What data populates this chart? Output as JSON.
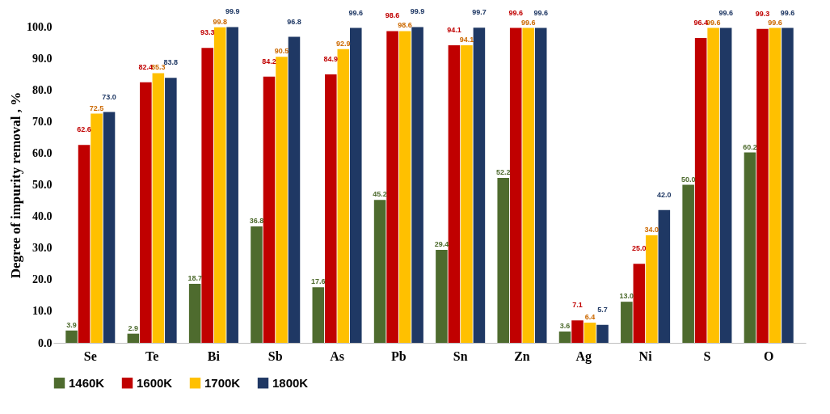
{
  "chart_data": {
    "type": "bar",
    "ylabel": "Degree of impurity removal , %",
    "categories": [
      "Se",
      "Te",
      "Bi",
      "Sb",
      "As",
      "Pb",
      "Sn",
      "Zn",
      "Ag",
      "Ni",
      "S",
      "O"
    ],
    "series": [
      {
        "name": "1460K",
        "color": "#4e6b2e",
        "values": [
          3.9,
          2.9,
          18.7,
          36.8,
          17.6,
          45.2,
          29.4,
          52.2,
          3.6,
          13.0,
          50.0,
          60.2
        ],
        "value_labels": [
          "3.9",
          "2.9",
          "18.7",
          "36.8",
          "17.6",
          "45.2",
          "29.4",
          "52.2",
          "3.6",
          "13.0",
          "50.0",
          "60.2"
        ]
      },
      {
        "name": "1600K",
        "color": "#c00000",
        "values": [
          62.6,
          82.4,
          93.3,
          84.2,
          84.9,
          98.6,
          94.1,
          99.6,
          7.1,
          25.0,
          96.4,
          99.3
        ],
        "value_labels": [
          "62.6",
          "82.4",
          "93.3",
          "84.2",
          "84.9",
          "98.6",
          "94.1",
          "99.6",
          "7.1",
          "25.0",
          "96.4",
          "99.3"
        ]
      },
      {
        "name": "1700K",
        "color": "#ffc000",
        "values": [
          72.5,
          85.3,
          99.8,
          90.5,
          92.9,
          98.6,
          94.1,
          99.6,
          6.4,
          34.0,
          99.6,
          99.6
        ],
        "value_labels": [
          "72.5",
          "85.3",
          "99.8",
          "90.5",
          "92.9",
          "98.6",
          "94.1",
          "99.6",
          "6.4",
          "34.0",
          "99.6",
          "99.6"
        ]
      },
      {
        "name": "1800K",
        "color": "#1f3864",
        "values": [
          73.0,
          83.8,
          99.9,
          96.8,
          99.6,
          99.9,
          99.7,
          99.6,
          5.7,
          42.0,
          99.6,
          99.6
        ],
        "value_labels": [
          "73.0",
          "83.8",
          "99.9",
          "96.8",
          "99.6",
          "99.9",
          "99.7",
          "99.6",
          "5.7",
          "42.0",
          "99.6",
          "99.6"
        ]
      }
    ],
    "ylim": [
      0,
      100
    ],
    "yticks": [
      {
        "value": 0,
        "label": "0.0"
      },
      {
        "value": 10,
        "label": "10.0"
      },
      {
        "value": 20,
        "label": "20.0"
      },
      {
        "value": 30,
        "label": "30.0"
      },
      {
        "value": 40,
        "label": "40.0"
      },
      {
        "value": 50,
        "label": "50.0"
      },
      {
        "value": 60,
        "label": "60.0"
      },
      {
        "value": 70,
        "label": "70.0"
      },
      {
        "value": 80,
        "label": "80.0"
      },
      {
        "value": 90,
        "label": "90.0"
      },
      {
        "value": 100,
        "label": "100.0"
      }
    ],
    "grid": false,
    "legend": "bottom"
  }
}
